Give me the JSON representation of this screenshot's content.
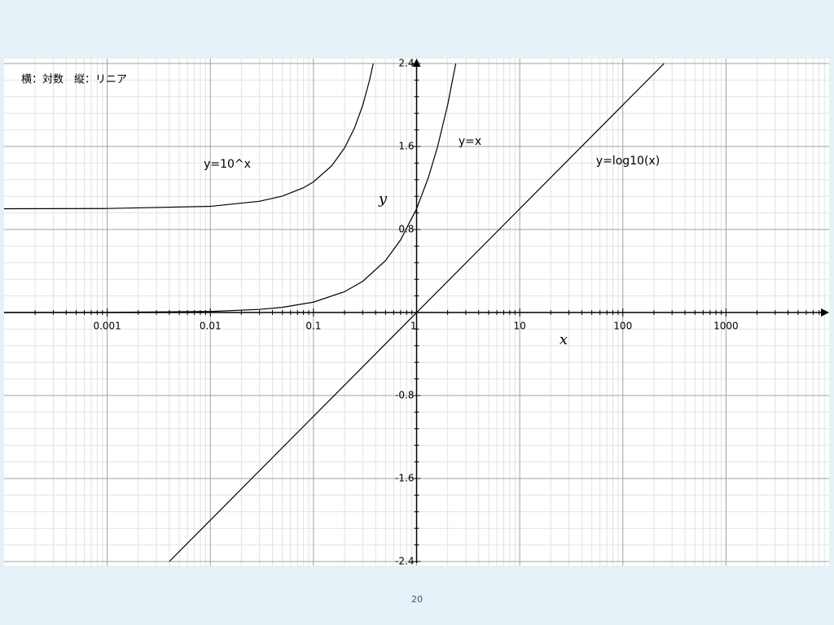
{
  "chart_data": {
    "type": "line",
    "title": "横：対数　縦：リニア",
    "x_label": "x",
    "y_label": "y",
    "x_scale": "log",
    "xlim": [
      0.0001,
      10000
    ],
    "ylim": [
      -2.4,
      2.4
    ],
    "xticks": [
      0.001,
      0.01,
      0.1,
      1,
      10,
      100,
      1000
    ],
    "yticks": [
      -2.4,
      -1.6,
      -0.8,
      0.8,
      1.6,
      2.4
    ],
    "grid": true,
    "series": [
      {
        "name": "y=10^x",
        "color": "#000000",
        "x": [
          0.0001,
          0.001,
          0.01,
          0.03,
          0.05,
          0.08,
          0.1,
          0.15,
          0.2,
          0.25,
          0.3,
          0.35,
          0.38
        ],
        "values": [
          1.0002,
          1.0023,
          1.023,
          1.072,
          1.122,
          1.202,
          1.259,
          1.413,
          1.585,
          1.778,
          1.995,
          2.239,
          2.399
        ]
      },
      {
        "name": "y=x",
        "color": "#000000",
        "x": [
          0.0001,
          0.001,
          0.01,
          0.03,
          0.05,
          0.1,
          0.2,
          0.3,
          0.5,
          0.7,
          1,
          1.3,
          1.6,
          2,
          2.4
        ],
        "values": [
          0.0001,
          0.001,
          0.01,
          0.03,
          0.05,
          0.1,
          0.2,
          0.3,
          0.5,
          0.7,
          1,
          1.3,
          1.6,
          2,
          2.4
        ]
      },
      {
        "name": "y=log10(x)",
        "color": "#000000",
        "x": [
          0.004,
          251
        ],
        "values": [
          -2.4,
          2.4
        ]
      }
    ]
  },
  "page_number": "20"
}
